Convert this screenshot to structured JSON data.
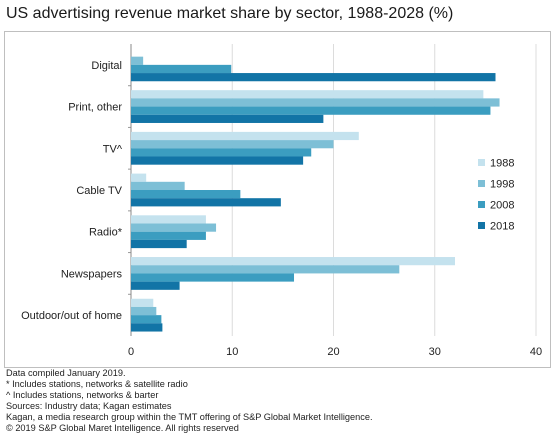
{
  "chart_data": {
    "type": "bar",
    "orientation": "horizontal",
    "title": "US advertising revenue market share by sector, 1988-2028 (%)",
    "categories": [
      "Digital",
      "Print, other",
      "TV^",
      "Cable TV",
      "Radio*",
      "Newspapers",
      "Outdoor/out of home"
    ],
    "series": [
      {
        "name": "1988",
        "color": "#c4e2ee",
        "values": [
          0,
          34.8,
          22.5,
          1.5,
          7.4,
          32.0,
          2.2
        ]
      },
      {
        "name": "1998",
        "color": "#7dbfd6",
        "values": [
          1.2,
          36.4,
          20.0,
          5.3,
          8.4,
          26.5,
          2.5
        ]
      },
      {
        "name": "2008",
        "color": "#3b9dc0",
        "values": [
          9.9,
          35.5,
          17.8,
          10.8,
          7.4,
          16.1,
          3.0
        ]
      },
      {
        "name": "2018",
        "color": "#1274a6",
        "values": [
          36.0,
          19.0,
          17.0,
          14.8,
          5.5,
          4.8,
          3.1
        ]
      }
    ],
    "xlim": [
      0,
      40
    ],
    "xticks": [
      0,
      10,
      20,
      30,
      40
    ],
    "grid": true,
    "legend_position": "right"
  },
  "notes": [
    "Data compiled January 2019.",
    "* Includes stations, networks & satellite radio",
    "^ Includes stations, networks & barter",
    "Sources: Industry data; Kagan estimates",
    "Kagan, a media research group within the TMT offering of S&P Global Market Intelligence.",
    "© 2019 S&P Global Maret Intelligence. All rights reserved"
  ]
}
